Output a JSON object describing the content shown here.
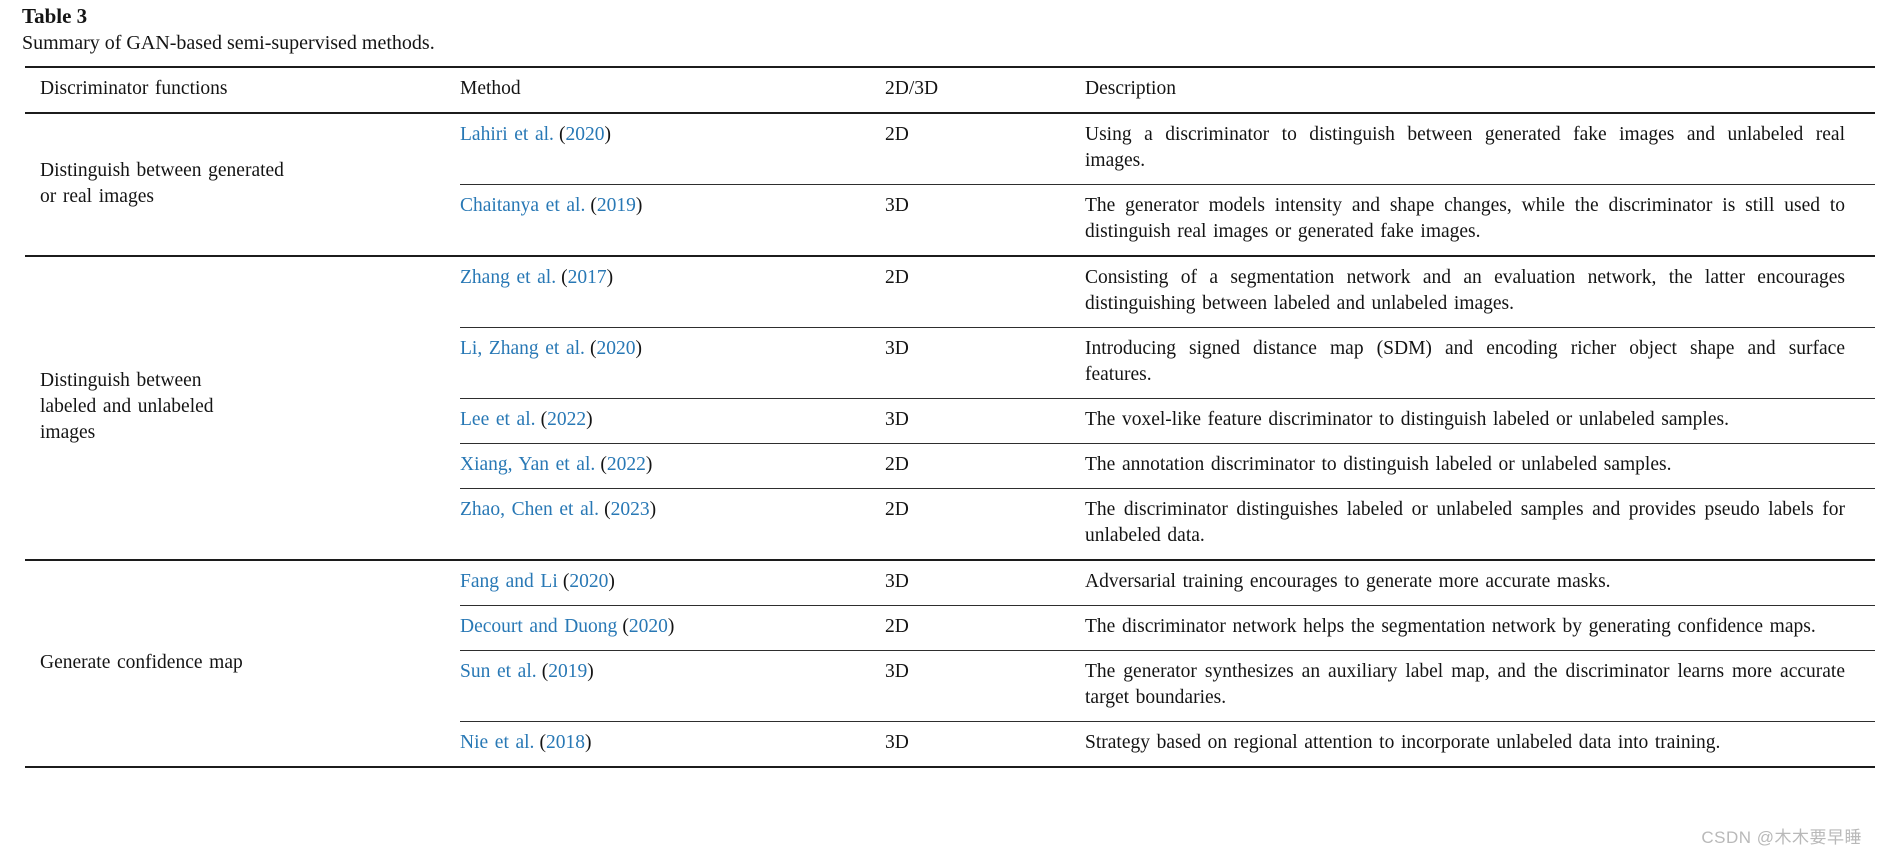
{
  "page": {
    "table_label": "Table 3",
    "caption": "Summary of GAN-based semi-supervised methods.",
    "watermark": "CSDN @木木要早睡",
    "link_color": "#2878b5"
  },
  "punct": {
    "open": "(",
    "close": ")"
  },
  "header": {
    "col1": "Discriminator functions",
    "col2": "Method",
    "col3": "2D/3D",
    "col4": "Description"
  },
  "groups": [
    {
      "function": "Distinguish between generated or real images",
      "rows": [
        {
          "authors": "Lahiri et al.",
          "year": "2020",
          "dim": "2D",
          "description": "Using a discriminator to distinguish between generated fake images and unlabeled real images."
        },
        {
          "authors": "Chaitanya et al.",
          "year": "2019",
          "dim": "3D",
          "description": "The generator models intensity and shape changes, while the discriminator is still used to distinguish real images or generated fake images."
        }
      ]
    },
    {
      "function": "Distinguish between labeled and unlabeled images",
      "rows": [
        {
          "authors": "Zhang et al.",
          "year": "2017",
          "dim": "2D",
          "description": "Consisting of a segmentation network and an evaluation network, the latter encourages distinguishing between labeled and unlabeled images."
        },
        {
          "authors": "Li, Zhang et al.",
          "year": "2020",
          "dim": "3D",
          "description": "Introducing signed distance map (SDM) and encoding richer object shape and surface features."
        },
        {
          "authors": "Lee et al.",
          "year": "2022",
          "dim": "3D",
          "description": "The voxel-like feature discriminator to distinguish labeled or unlabeled samples."
        },
        {
          "authors": "Xiang, Yan et al.",
          "year": "2022",
          "dim": "2D",
          "description": "The annotation discriminator to distinguish labeled or unlabeled samples."
        },
        {
          "authors": "Zhao, Chen et al.",
          "year": "2023",
          "dim": "2D",
          "description": "The discriminator distinguishes labeled or unlabeled samples and provides pseudo labels for unlabeled data."
        }
      ]
    },
    {
      "function": "Generate confidence map",
      "rows": [
        {
          "authors": "Fang and Li",
          "year": "2020",
          "dim": "3D",
          "description": "Adversarial training encourages to generate more accurate masks."
        },
        {
          "authors": "Decourt and Duong",
          "year": "2020",
          "dim": "2D",
          "description": "The discriminator network helps the segmentation network by generating confidence maps."
        },
        {
          "authors": "Sun et al.",
          "year": "2019",
          "dim": "3D",
          "description": "The generator synthesizes an auxiliary label map, and the discriminator learns more accurate target boundaries."
        },
        {
          "authors": "Nie et al.",
          "year": "2018",
          "dim": "3D",
          "description": "Strategy based on regional attention to incorporate unlabeled data into training."
        }
      ]
    }
  ]
}
